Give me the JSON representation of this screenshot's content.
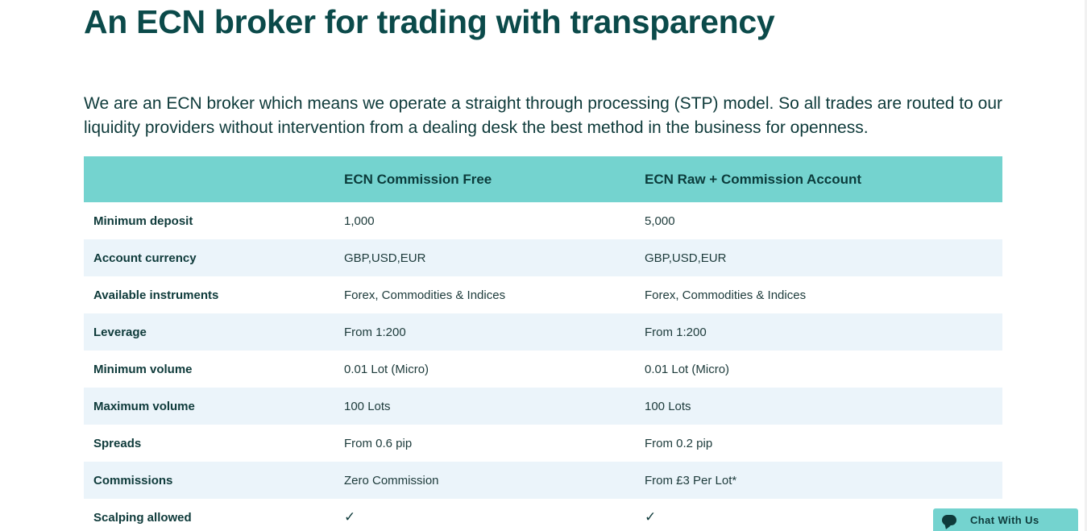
{
  "headline": "An ECN broker for trading with transparency",
  "intro": "We are an ECN broker which means we operate a straight through processing (STP) model. So all trades are routed to our liquidity providers without intervention from a dealing desk the best method in the business for openness.",
  "table": {
    "headers": [
      "",
      "ECN Commission Free",
      "ECN Raw + Commission Account"
    ],
    "rows": [
      {
        "label": "Minimum deposit",
        "a": "1,000",
        "b": "5,000"
      },
      {
        "label": "Account currency",
        "a": "GBP,USD,EUR",
        "b": "GBP,USD,EUR"
      },
      {
        "label": "Available instruments",
        "a": "Forex, Commodities & Indices",
        "b": "Forex, Commodities & Indices"
      },
      {
        "label": "Leverage",
        "a": "From 1:200",
        "b": "From 1:200"
      },
      {
        "label": "Minimum volume",
        "a": "0.01 Lot (Micro)",
        "b": "0.01 Lot (Micro)"
      },
      {
        "label": "Maximum volume",
        "a": "100 Lots",
        "b": "100 Lots"
      },
      {
        "label": "Spreads",
        "a": "From 0.6 pip",
        "b": "From 0.2 pip"
      },
      {
        "label": "Commissions",
        "a": "Zero Commission",
        "b": "From £3 Per Lot*"
      },
      {
        "label": "Scalping allowed",
        "a": "✓",
        "b": "✓"
      }
    ]
  },
  "chat": {
    "label": "Chat With Us",
    "icon": "chat-bubble-icon"
  },
  "colors": {
    "header_bg": "#74d3cf",
    "alt_row_bg": "#ebf4fa",
    "text_dark": "#0e3a3a",
    "headline": "#0b4a4a"
  }
}
